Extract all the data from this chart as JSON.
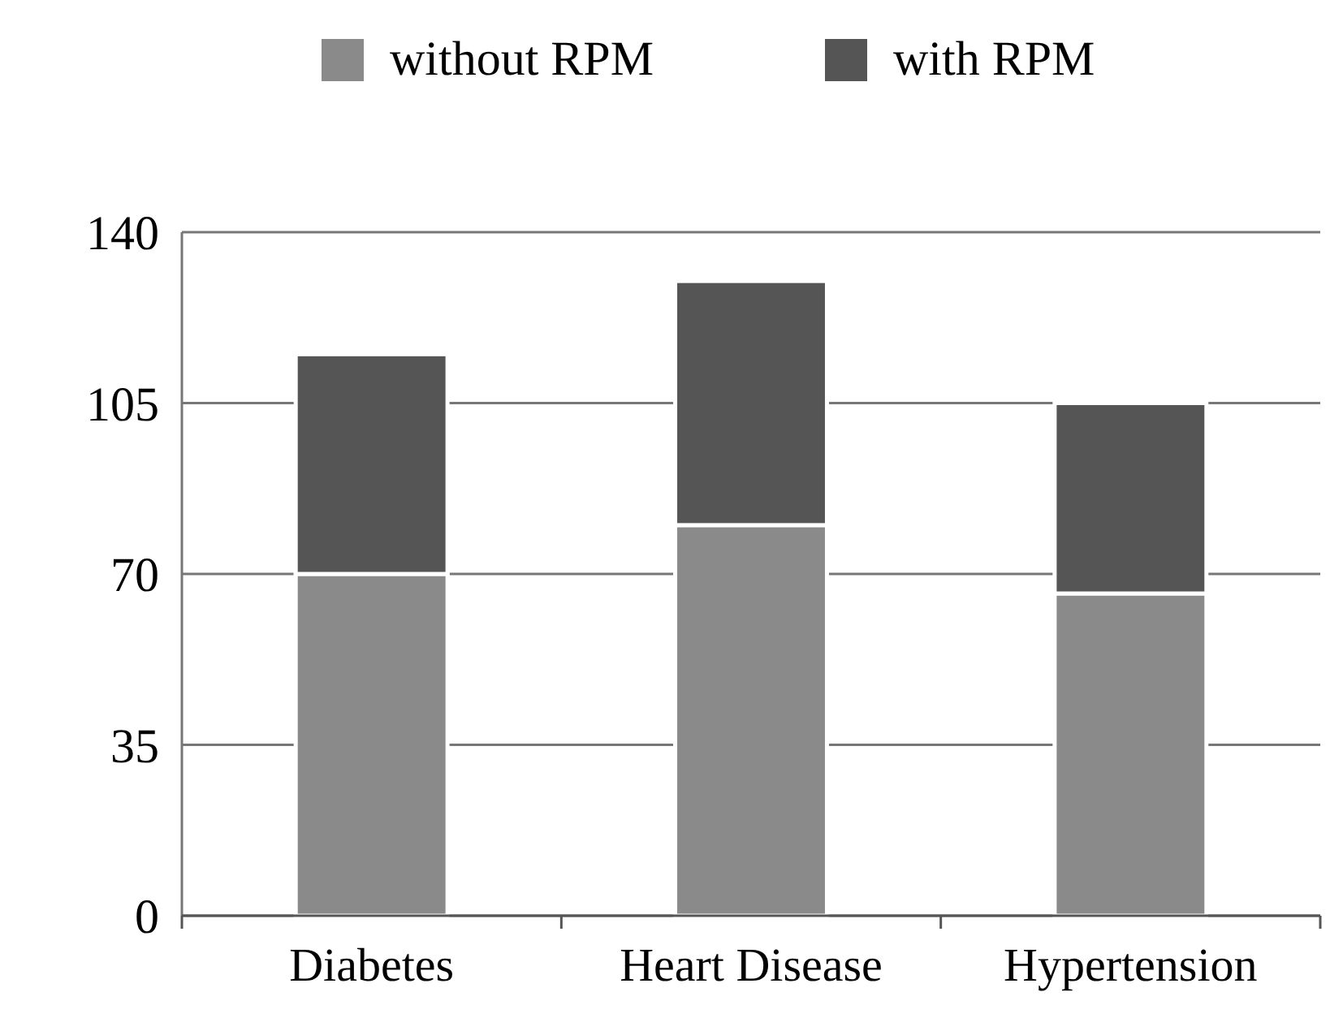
{
  "chart_data": {
    "type": "bar",
    "stacked": true,
    "categories": [
      "Diabetes",
      "Heart Disease",
      "Hypertension"
    ],
    "series": [
      {
        "name": "without RPM",
        "color": "#8a8a8a",
        "values": [
          70,
          80,
          66
        ]
      },
      {
        "name": "with RPM",
        "color": "#555555",
        "values": [
          45,
          50,
          39
        ]
      }
    ],
    "ylim": [
      0,
      140
    ],
    "yticks": [
      0,
      35,
      70,
      105,
      140
    ],
    "grid": "y",
    "legend": "top"
  }
}
